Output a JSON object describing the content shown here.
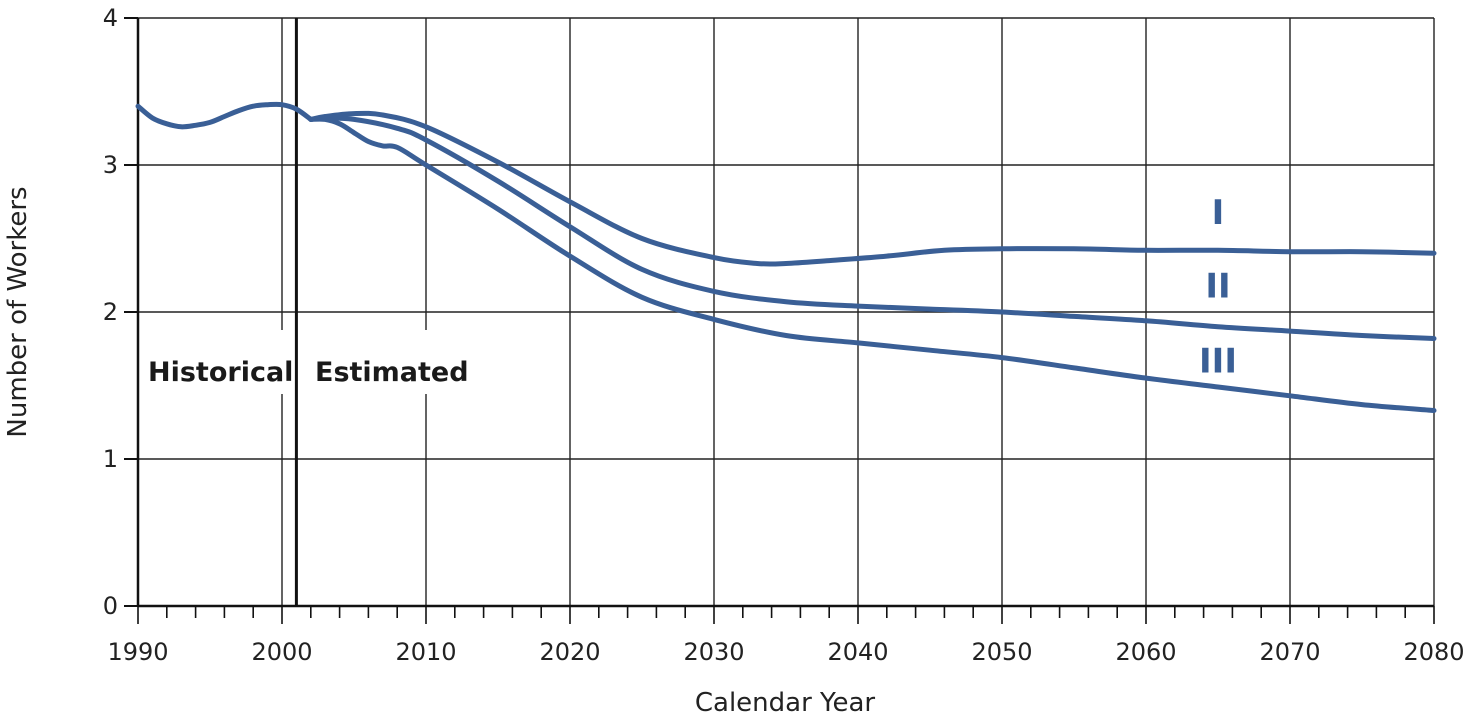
{
  "chart_data": {
    "type": "line",
    "title": "",
    "xlabel": "Calendar Year",
    "ylabel": "Number of Workers",
    "xlim": [
      1990,
      2080
    ],
    "ylim": [
      0,
      4
    ],
    "x_ticks": [
      1990,
      2000,
      2010,
      2020,
      2030,
      2040,
      2050,
      2060,
      2070,
      2080
    ],
    "y_ticks": [
      0,
      1,
      2,
      3,
      4
    ],
    "grid": true,
    "x_minor_tick_step": 2,
    "region_divider_x": 2001,
    "region_labels": [
      "Historical",
      "Estimated"
    ],
    "line_color": "#3a5f96",
    "historical": {
      "x": [
        1990,
        1991,
        1992,
        1993,
        1994,
        1995,
        1996,
        1997,
        1998,
        1999,
        2000,
        2001,
        2002
      ],
      "y": [
        3.4,
        3.32,
        3.28,
        3.26,
        3.27,
        3.29,
        3.33,
        3.37,
        3.4,
        3.41,
        3.41,
        3.38,
        3.31
      ]
    },
    "series": [
      {
        "name": "I",
        "x": [
          2002,
          2003,
          2005,
          2007,
          2010,
          2015,
          2020,
          2025,
          2030,
          2033,
          2035,
          2038,
          2042,
          2046,
          2050,
          2055,
          2060,
          2065,
          2070,
          2075,
          2080
        ],
        "y": [
          3.31,
          3.33,
          3.35,
          3.34,
          3.26,
          3.02,
          2.75,
          2.5,
          2.37,
          2.33,
          2.33,
          2.35,
          2.38,
          2.42,
          2.43,
          2.43,
          2.42,
          2.42,
          2.41,
          2.41,
          2.4
        ]
      },
      {
        "name": "II",
        "x": [
          2002,
          2003,
          2005,
          2008,
          2010,
          2015,
          2020,
          2025,
          2030,
          2035,
          2040,
          2045,
          2050,
          2055,
          2060,
          2065,
          2070,
          2075,
          2080
        ],
        "y": [
          3.31,
          3.32,
          3.31,
          3.25,
          3.17,
          2.89,
          2.58,
          2.29,
          2.14,
          2.07,
          2.04,
          2.02,
          2.0,
          1.97,
          1.94,
          1.9,
          1.87,
          1.84,
          1.82
        ]
      },
      {
        "name": "III",
        "x": [
          2002,
          2003,
          2004,
          2005,
          2006,
          2007,
          2008,
          2010,
          2015,
          2020,
          2025,
          2030,
          2035,
          2040,
          2045,
          2050,
          2055,
          2060,
          2065,
          2070,
          2075,
          2080
        ],
        "y": [
          3.31,
          3.31,
          3.28,
          3.22,
          3.16,
          3.13,
          3.12,
          3.0,
          2.7,
          2.38,
          2.1,
          1.95,
          1.84,
          1.79,
          1.74,
          1.69,
          1.62,
          1.55,
          1.49,
          1.43,
          1.37,
          1.33
        ]
      }
    ],
    "series_label_positions": [
      {
        "name": "I",
        "x": 2065,
        "y": 2.6
      },
      {
        "name": "II",
        "x": 2065,
        "y": 2.1
      },
      {
        "name": "III",
        "x": 2065,
        "y": 1.59
      }
    ]
  }
}
